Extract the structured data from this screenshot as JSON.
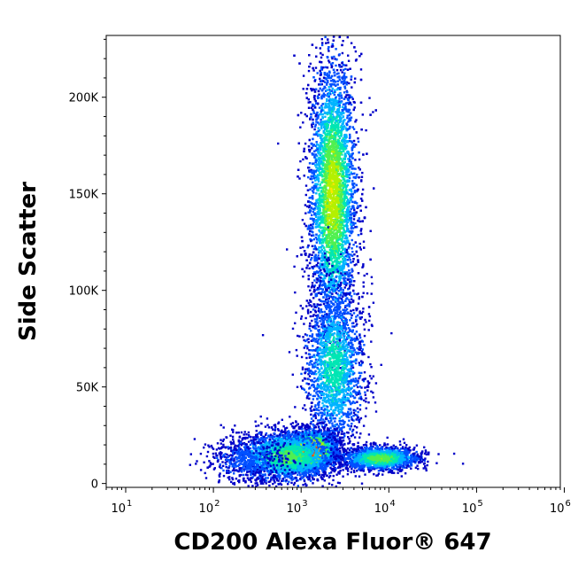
{
  "chart_data": {
    "type": "scatter",
    "subtype": "flow-cytometry-density-dot-plot",
    "xlabel": "CD200 Alexa Fluor® 647",
    "ylabel": "Side Scatter",
    "x_scale": "log",
    "y_scale": "linear",
    "xlim": [
      6,
      900000
    ],
    "ylim": [
      -2000,
      232000
    ],
    "x_ticks": [
      {
        "base": "10",
        "exp": "1",
        "value": 10
      },
      {
        "base": "10",
        "exp": "2",
        "value": 100
      },
      {
        "base": "10",
        "exp": "3",
        "value": 1000
      },
      {
        "base": "10",
        "exp": "4",
        "value": 10000
      },
      {
        "base": "10",
        "exp": "5",
        "value": 100000
      },
      {
        "base": "10",
        "exp": "6",
        "value": 1000000
      }
    ],
    "y_ticks": [
      {
        "label": "0",
        "value": 0
      },
      {
        "label": "50K",
        "value": 50000
      },
      {
        "label": "100K",
        "value": 100000
      },
      {
        "label": "150K",
        "value": 150000
      },
      {
        "label": "200K",
        "value": 200000
      }
    ],
    "grid": false,
    "legend": "none",
    "colormap": [
      "#0000c8",
      "#0050ff",
      "#00b4ff",
      "#00e6b4",
      "#50f050",
      "#b4f000",
      "#ffe600",
      "#ffa000",
      "#ff4000",
      "#e60000"
    ],
    "populations": [
      {
        "x_center": 2300,
        "y_center": 150000,
        "x_spread_decades": 0.13,
        "y_spread": 34000,
        "count": 5200,
        "peak_density": 0.6
      },
      {
        "x_center": 2400,
        "y_center": 60000,
        "x_spread_decades": 0.17,
        "y_spread": 22000,
        "count": 2000,
        "peak_density": 0.35
      },
      {
        "x_center": 1300,
        "y_center": 17000,
        "x_spread_decades": 0.14,
        "y_spread": 5000,
        "count": 2600,
        "peak_density": 1.0
      },
      {
        "x_center": 700,
        "y_center": 14000,
        "x_spread_decades": 0.3,
        "y_spread": 6500,
        "count": 2200,
        "peak_density": 0.45
      },
      {
        "x_center": 8000,
        "y_center": 13000,
        "x_spread_decades": 0.22,
        "y_spread": 3000,
        "count": 1600,
        "peak_density": 0.5
      },
      {
        "x_center": 250,
        "y_center": 12000,
        "x_spread_decades": 0.25,
        "y_spread": 6000,
        "count": 500,
        "peak_density": 0.12
      }
    ]
  }
}
